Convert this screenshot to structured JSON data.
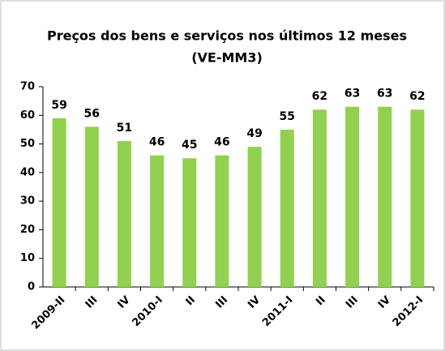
{
  "chart_data": {
    "type": "bar",
    "title": "Preços dos bens e serviços nos últimos 12 meses",
    "subtitle": "(VE-MM3)",
    "categories": [
      "2009-II",
      "III",
      "IV",
      "2010-I",
      "II",
      "III",
      "IV",
      "2011-I",
      "II",
      "III",
      "IV",
      "2012-I"
    ],
    "values": [
      59,
      56,
      51,
      46,
      45,
      46,
      49,
      55,
      62,
      63,
      63,
      62
    ],
    "color": "#92d050",
    "ylim": [
      0,
      70
    ],
    "yticks": [
      0,
      10,
      20,
      30,
      40,
      50,
      60,
      70
    ],
    "grid": false
  }
}
